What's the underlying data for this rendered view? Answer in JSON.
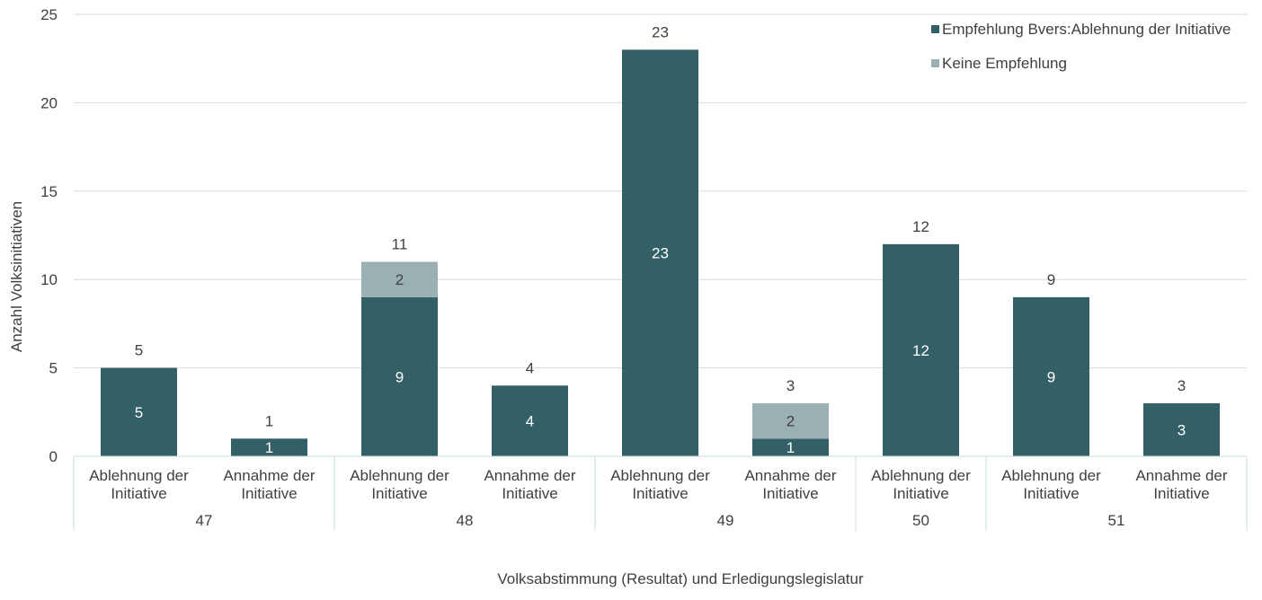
{
  "chart_data": {
    "type": "bar",
    "stacked": true,
    "title": "",
    "ylabel": "Anzahl Volksinitiativen",
    "xlabel": "Volksabstimmung (Resultat) und Erledigungslegislatur",
    "ylim": [
      0,
      25
    ],
    "yticks": [
      "0",
      "5",
      "10",
      "15",
      "20",
      "25"
    ],
    "ytick_values": [
      0,
      5,
      10,
      15,
      20,
      25
    ],
    "legend_position": "top-right",
    "categories": [
      "Ablehnung der Initiative",
      "Annahme der Initiative",
      "Ablehnung der Initiative",
      "Annahme der Initiative",
      "Ablehnung der Initiative",
      "Annahme der Initiative",
      "Ablehnung der Initiative",
      "Ablehnung der Initiative",
      "Annahme der Initiative"
    ],
    "category_lines": [
      [
        "Ablehnung der",
        "Initiative"
      ],
      [
        "Annahme der",
        "Initiative"
      ],
      [
        "Ablehnung der",
        "Initiative"
      ],
      [
        "Annahme der",
        "Initiative"
      ],
      [
        "Ablehnung der",
        "Initiative"
      ],
      [
        "Annahme der",
        "Initiative"
      ],
      [
        "Ablehnung der",
        "Initiative"
      ],
      [
        "Ablehnung der",
        "Initiative"
      ],
      [
        "Annahme der",
        "Initiative"
      ]
    ],
    "groups": [
      {
        "label": "47",
        "count": 2
      },
      {
        "label": "48",
        "count": 2
      },
      {
        "label": "49",
        "count": 2
      },
      {
        "label": "50",
        "count": 1
      },
      {
        "label": "51",
        "count": 2
      }
    ],
    "series": [
      {
        "name": "Empfehlung Bvers:Ablehnung der Initiative",
        "color": "#335f66",
        "label_color": "#ffffff",
        "values": [
          5,
          1,
          9,
          4,
          23,
          1,
          12,
          9,
          3
        ]
      },
      {
        "name": "Keine Empfehlung",
        "color": "#9bb0b3",
        "label_color": "#404040",
        "values": [
          0,
          0,
          2,
          0,
          0,
          2,
          0,
          0,
          0
        ]
      }
    ],
    "totals": [
      5,
      1,
      11,
      4,
      23,
      3,
      12,
      9,
      3
    ]
  }
}
